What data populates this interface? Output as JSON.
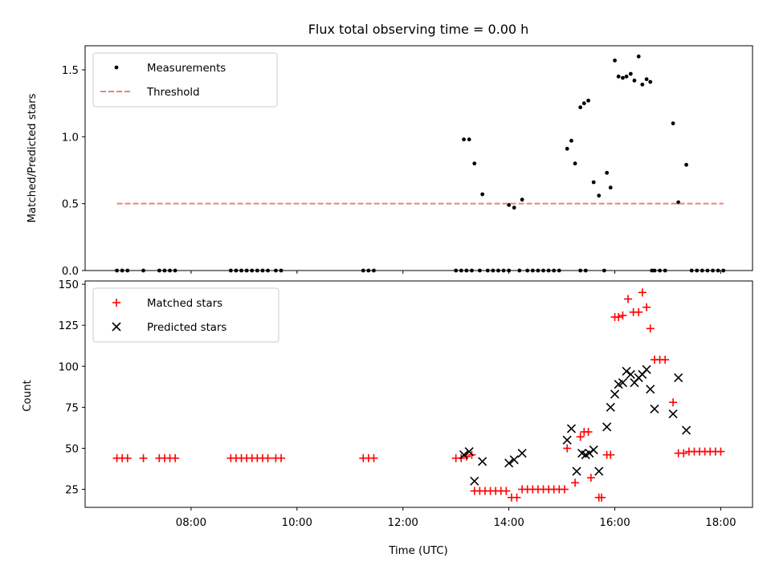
{
  "chart_data": [
    {
      "type": "scatter",
      "title": "Flux total observing time = 0.00 h",
      "xlabel": "",
      "ylabel": "Matched/Predicted stars",
      "xlim": [
        6.0,
        18.6
      ],
      "ylim": [
        0.0,
        1.68
      ],
      "yticks": [
        0.0,
        0.5,
        1.0,
        1.5
      ],
      "ytick_labels": [
        "0.0",
        "0.5",
        "1.0",
        "1.5"
      ],
      "legend_position": "top-left",
      "series": [
        {
          "name": "Measurements",
          "marker": "dot",
          "color": "#000000",
          "x": [
            6.6,
            6.7,
            6.8,
            7.1,
            7.4,
            7.5,
            7.6,
            7.7,
            8.75,
            8.85,
            8.95,
            9.05,
            9.15,
            9.25,
            9.35,
            9.45,
            9.6,
            9.7,
            11.25,
            11.35,
            11.45,
            13.0,
            13.1,
            13.2,
            13.3,
            13.45,
            13.6,
            13.7,
            13.8,
            13.9,
            14.0,
            14.2,
            14.35,
            14.45,
            14.55,
            14.65,
            14.75,
            14.85,
            14.95,
            15.35,
            15.45,
            15.8,
            16.7,
            16.85,
            16.95,
            17.45,
            17.55,
            17.65,
            17.75,
            17.85,
            17.95,
            18.05,
            13.15,
            13.25,
            13.35,
            13.5,
            14.0,
            14.1,
            14.25,
            15.1,
            15.18,
            15.25,
            15.35,
            15.42,
            15.5,
            15.6,
            15.7,
            15.85,
            15.92,
            16.0,
            16.07,
            16.15,
            16.22,
            16.3,
            16.37,
            16.45,
            16.52,
            16.6,
            16.67,
            16.75,
            17.1,
            17.2,
            17.35
          ],
          "y": [
            0,
            0,
            0,
            0,
            0,
            0,
            0,
            0,
            0,
            0,
            0,
            0,
            0,
            0,
            0,
            0,
            0,
            0,
            0,
            0,
            0,
            0,
            0,
            0,
            0,
            0,
            0,
            0,
            0,
            0,
            0,
            0,
            0,
            0,
            0,
            0,
            0,
            0,
            0,
            0,
            0,
            0,
            0,
            0,
            0,
            0,
            0,
            0,
            0,
            0,
            0,
            0,
            0.98,
            0.98,
            0.8,
            0.57,
            0.49,
            0.47,
            0.53,
            0.91,
            0.97,
            0.8,
            1.22,
            1.25,
            1.27,
            0.66,
            0.56,
            0.73,
            0.62,
            1.57,
            1.45,
            1.44,
            1.45,
            1.47,
            1.42,
            1.6,
            1.39,
            1.43,
            1.41,
            0,
            1.1,
            0.51,
            0.79
          ]
        },
        {
          "name": "Threshold",
          "marker": "dashed-line",
          "color": "#f08080",
          "x": [
            6.6,
            18.05
          ],
          "y": [
            0.5,
            0.5
          ]
        }
      ]
    },
    {
      "type": "scatter",
      "title": "",
      "xlabel": "Time (UTC)",
      "ylabel": "Count",
      "xlim": [
        6.0,
        18.6
      ],
      "ylim": [
        14,
        152
      ],
      "xticks": [
        8,
        10,
        12,
        14,
        16,
        18
      ],
      "xtick_labels": [
        "08:00",
        "10:00",
        "12:00",
        "14:00",
        "16:00",
        "18:00"
      ],
      "yticks": [
        25,
        50,
        75,
        100,
        125,
        150
      ],
      "ytick_labels": [
        "25",
        "50",
        "75",
        "100",
        "125",
        "150"
      ],
      "legend_position": "top-left",
      "series": [
        {
          "name": "Matched stars",
          "marker": "plus",
          "color": "#ff0000",
          "x": [
            6.6,
            6.7,
            6.8,
            7.1,
            7.4,
            7.5,
            7.6,
            7.7,
            8.75,
            8.85,
            8.95,
            9.05,
            9.15,
            9.25,
            9.35,
            9.45,
            9.6,
            9.7,
            11.25,
            11.35,
            11.45,
            13.0,
            13.1,
            13.2,
            13.3,
            13.35,
            13.45,
            13.55,
            13.65,
            13.75,
            13.85,
            13.95,
            14.05,
            14.15,
            14.25,
            14.35,
            14.45,
            14.55,
            14.65,
            14.75,
            14.85,
            14.95,
            15.05,
            15.1,
            15.25,
            15.35,
            15.42,
            15.5,
            15.55,
            15.7,
            15.75,
            15.85,
            15.92,
            16.0,
            16.07,
            16.15,
            16.25,
            16.35,
            16.45,
            16.52,
            16.6,
            16.67,
            16.75,
            16.85,
            16.95,
            17.1,
            17.2,
            17.3,
            17.4,
            17.5,
            17.6,
            17.7,
            17.8,
            17.9,
            18.0
          ],
          "y": [
            44,
            44,
            44,
            44,
            44,
            44,
            44,
            44,
            44,
            44,
            44,
            44,
            44,
            44,
            44,
            44,
            44,
            44,
            44,
            44,
            44,
            44,
            44,
            45,
            46,
            24,
            24,
            24,
            24,
            24,
            24,
            24,
            20,
            20,
            25,
            25,
            25,
            25,
            25,
            25,
            25,
            25,
            25,
            50,
            29,
            57,
            60,
            60,
            32,
            20,
            20,
            46,
            46,
            130,
            130,
            131,
            141,
            133,
            133,
            145,
            136,
            123,
            104,
            104,
            104,
            78,
            47,
            47,
            48,
            48,
            48,
            48,
            48,
            48,
            48
          ]
        },
        {
          "name": "Predicted stars",
          "marker": "x",
          "color": "#000000",
          "x": [
            13.15,
            13.25,
            13.35,
            13.5,
            14.0,
            14.1,
            14.25,
            15.1,
            15.18,
            15.28,
            15.38,
            15.45,
            15.52,
            15.6,
            15.7,
            15.85,
            15.92,
            16.0,
            16.07,
            16.15,
            16.22,
            16.3,
            16.37,
            16.45,
            16.52,
            16.6,
            16.67,
            16.75,
            17.1,
            17.2,
            17.35
          ],
          "y": [
            46,
            48,
            30,
            42,
            41,
            43,
            47,
            55,
            62,
            36,
            47,
            46,
            47,
            49,
            36,
            63,
            75,
            83,
            89,
            90,
            97,
            95,
            90,
            93,
            95,
            98,
            86,
            74,
            71,
            93,
            61
          ]
        }
      ]
    }
  ]
}
